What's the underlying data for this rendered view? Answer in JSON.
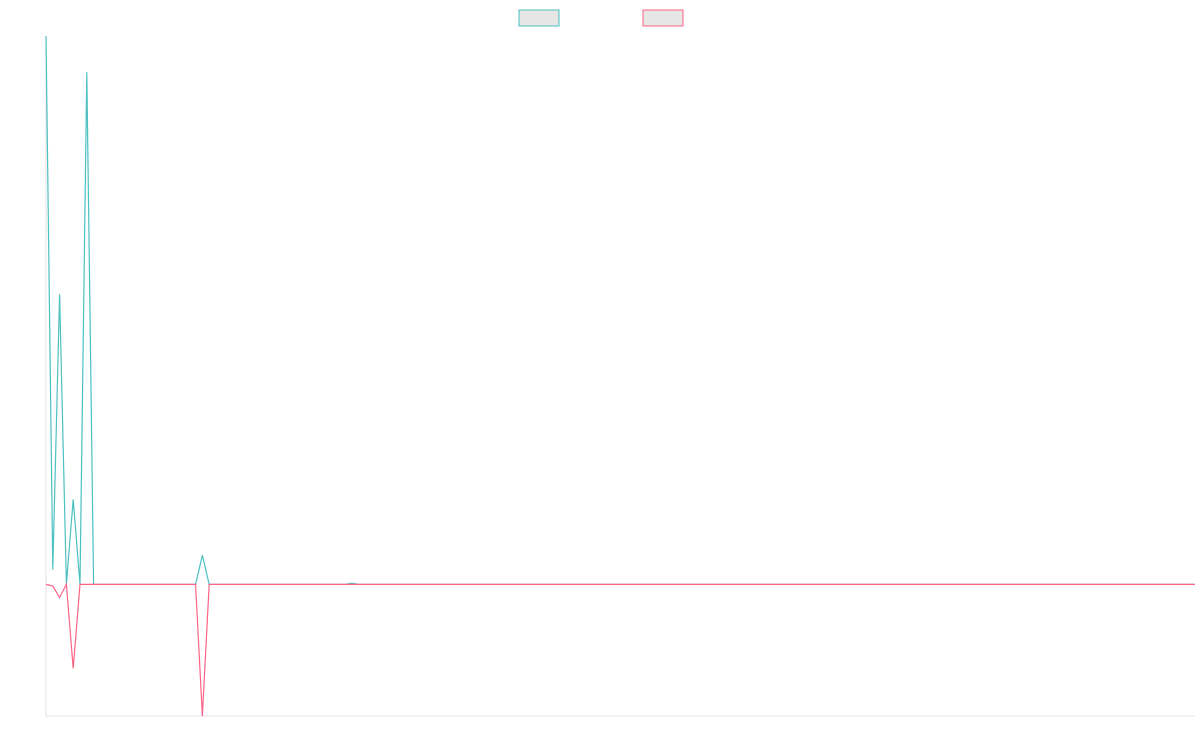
{
  "chart_data": {
    "type": "line",
    "categories": [
      null,
      null,
      null,
      null,
      null,
      null,
      null,
      null,
      null,
      null,
      null,
      null,
      null,
      null,
      null,
      null,
      null,
      null,
      null,
      null,
      null,
      null,
      null,
      null,
      null,
      null,
      null,
      null,
      null,
      null,
      null,
      null,
      null,
      null,
      null,
      null,
      null,
      null,
      null,
      null,
      null,
      null,
      null,
      null,
      null,
      null,
      null,
      null,
      null,
      null,
      null,
      null,
      null,
      null,
      null,
      null,
      null,
      null,
      null,
      null,
      null,
      null,
      null,
      null,
      null,
      null,
      null,
      null,
      null,
      null,
      null,
      null,
      null,
      null,
      null,
      null,
      null,
      null,
      null,
      null,
      null,
      null,
      null,
      null,
      null,
      null,
      null,
      null,
      null,
      null,
      null,
      null,
      null,
      null,
      null,
      null,
      null,
      null,
      null,
      null,
      null,
      null,
      null,
      null,
      null,
      null,
      null,
      null,
      null,
      null,
      null,
      null,
      null,
      null,
      null,
      null,
      null,
      null,
      null,
      null,
      null,
      null,
      null,
      null,
      null,
      null,
      null,
      null,
      null,
      null,
      null,
      null,
      null,
      null,
      null,
      null,
      null,
      null,
      null,
      null,
      null,
      null,
      null,
      null,
      null,
      null,
      null,
      null,
      null,
      null,
      null,
      null,
      null,
      null,
      null,
      null,
      null,
      null,
      null,
      null,
      null,
      null,
      null,
      null,
      null,
      null,
      null,
      null,
      null,
      null
    ],
    "series": [
      {
        "color": "#4bc0c0",
        "values": [
          100,
          2.7,
          52.9,
          0,
          15.5,
          0,
          93.4,
          0,
          0,
          0,
          0,
          0,
          0,
          0,
          0,
          0,
          0,
          0,
          0,
          0,
          0,
          0,
          0,
          5.3,
          0,
          0,
          0,
          0,
          0,
          0,
          0,
          0,
          0,
          0,
          0,
          0,
          0,
          0,
          0,
          0,
          0,
          0,
          0,
          0,
          0,
          0.2,
          0,
          0,
          0,
          0,
          0,
          0,
          0,
          0,
          0,
          0,
          0,
          0,
          0,
          0,
          0,
          0,
          0,
          0,
          0,
          0,
          0,
          0,
          0,
          0,
          0,
          0,
          0,
          0,
          0,
          0,
          0,
          0,
          0,
          0,
          0,
          0,
          0,
          0,
          0,
          0,
          0,
          0,
          0,
          0,
          0,
          0,
          0,
          0,
          0,
          0,
          0,
          0,
          0,
          0,
          0,
          0,
          0,
          0,
          0,
          0,
          0,
          0,
          0,
          0,
          0,
          0,
          0,
          0,
          0,
          0,
          0,
          0,
          0,
          0,
          0,
          0,
          0,
          0,
          0,
          0,
          0,
          0,
          0,
          0,
          0,
          0,
          0,
          0,
          0,
          0,
          0,
          0,
          0,
          0,
          0,
          0,
          0,
          0,
          0,
          0,
          0,
          0,
          0,
          0,
          0,
          0,
          0,
          0,
          0,
          0,
          0,
          0,
          0,
          0,
          0,
          0,
          0,
          0,
          0,
          0,
          0,
          0,
          0,
          0
        ]
      },
      {
        "color": "#ff6384",
        "values": [
          0,
          -0.3,
          -2.4,
          0,
          -15.3,
          0,
          0,
          0,
          0,
          0,
          0,
          0,
          0,
          0,
          0,
          0,
          0,
          0,
          0,
          0,
          0,
          0,
          0,
          -24,
          0,
          0,
          0,
          0,
          0,
          0,
          0,
          0,
          0,
          0,
          0,
          0,
          0,
          0,
          0,
          0,
          0,
          0,
          0,
          0,
          0,
          0,
          0,
          0,
          0,
          0,
          0,
          0,
          0,
          0,
          0,
          0,
          0,
          0,
          0,
          0,
          0,
          0,
          0,
          0,
          0,
          0,
          0,
          0,
          0,
          0,
          0,
          0,
          0,
          0,
          0,
          0,
          0,
          0,
          0,
          0,
          0,
          0,
          0,
          0,
          0,
          0,
          0,
          0,
          0,
          0,
          0,
          0,
          0,
          0,
          0,
          0,
          0,
          0,
          0,
          0,
          0,
          0,
          0,
          0,
          0,
          0,
          0,
          0,
          0,
          0,
          0,
          0,
          0,
          0,
          0,
          0,
          0,
          0,
          0,
          0,
          0,
          0,
          0,
          0,
          0,
          0,
          0,
          0,
          0,
          0,
          0,
          0,
          0,
          0,
          0,
          0,
          0,
          0,
          0,
          0,
          0,
          0,
          0,
          0,
          0,
          0,
          0,
          0,
          0,
          0,
          0,
          0,
          0,
          0,
          0,
          0,
          0,
          0,
          0,
          0,
          0,
          0,
          0,
          0,
          0,
          0,
          0,
          0,
          0,
          0
        ]
      }
    ],
    "ylim": [
      -24,
      100
    ]
  }
}
